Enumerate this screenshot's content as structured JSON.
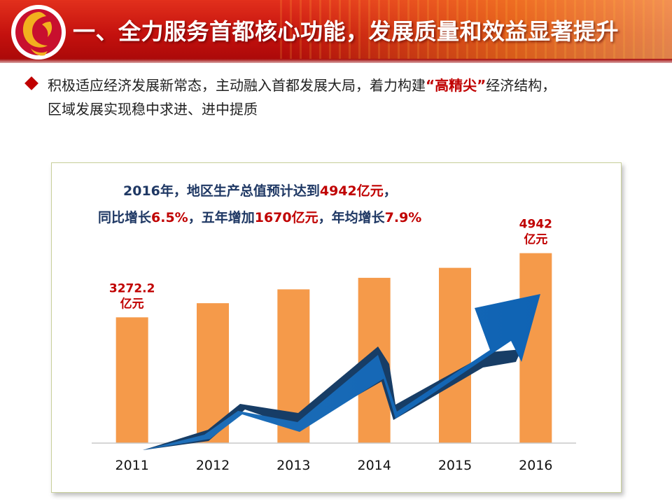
{
  "header": {
    "title": "一、全力服务首都核心功能，发展质量和效益显著提升",
    "accent_color": "#c4110e",
    "logo_icon": "red-gold-emblem-icon"
  },
  "intro": {
    "part1": "积极适应经济发展新常态，主动融入首都发展大局，着力构建",
    "highlight": "“高精尖”",
    "part2": "经济结构，",
    "line2": "区域发展实现稳中求进、进中提质"
  },
  "annotation": {
    "l1_a": "2016年，地区生产总值预计达到",
    "l1_b": "4942亿元",
    "l1_c": "，",
    "l2_a": "同比增长",
    "l2_b": "6.5%",
    "l2_c": "，五年增加",
    "l2_d": "1670亿元",
    "l2_e": "，年均增长",
    "l2_f": "7.9%"
  },
  "chart_data": {
    "type": "bar",
    "categories": [
      "2011",
      "2012",
      "2013",
      "2014",
      "2015",
      "2016"
    ],
    "values": [
      3272.2,
      3640,
      4000,
      4300,
      4560,
      4942
    ],
    "ylim": [
      0,
      5500
    ],
    "bar_color": "#f59a4a",
    "arrow_color": "#1a72c0",
    "data_labels": [
      {
        "index": 0,
        "value": "3272.2",
        "unit": "亿元"
      },
      {
        "index": 5,
        "value": "4942",
        "unit": "亿元"
      }
    ]
  }
}
